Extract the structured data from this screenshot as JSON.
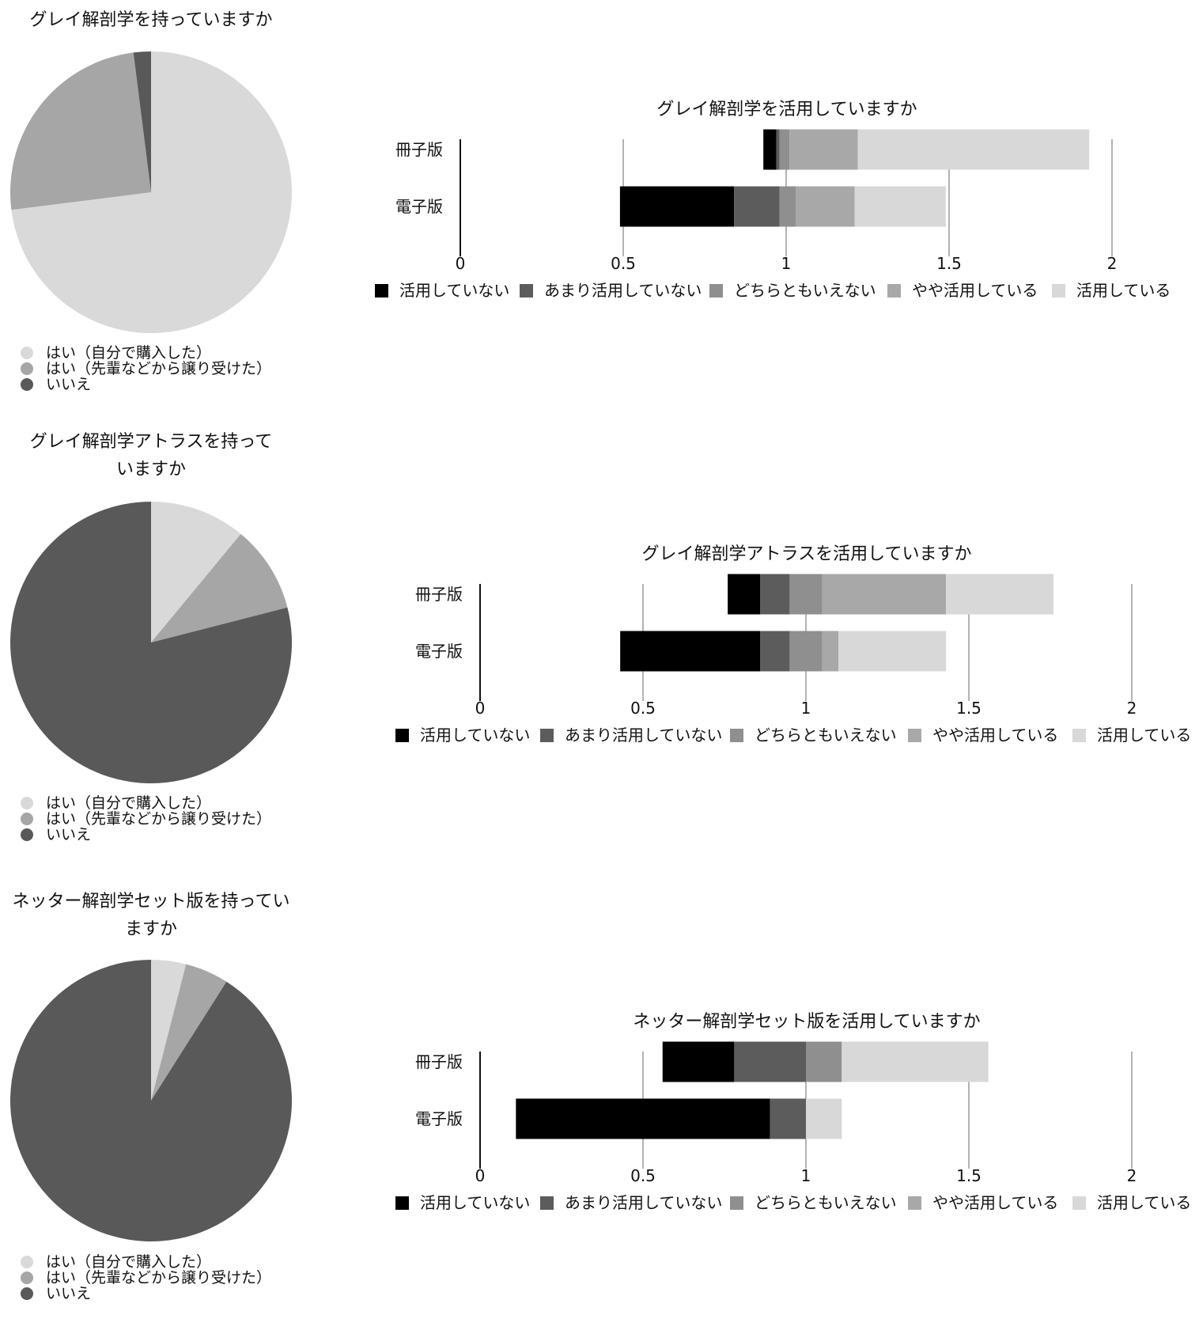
{
  "chart_data": [
    {
      "type": "pie",
      "title": "グレイ解剖学を持っていますか",
      "slices": [
        {
          "label": "はい（自分で購入した）",
          "value": 73,
          "color": "#d9d9d9"
        },
        {
          "label": "はい（先輩などから譲り受けた）",
          "value": 25,
          "color": "#a6a6a6"
        },
        {
          "label": "いいえ",
          "value": 2,
          "color": "#595959"
        }
      ],
      "legend": "bottom-left"
    },
    {
      "type": "bar",
      "orientation": "horizontal",
      "stacked": true,
      "title": "グレイ解剖学を活用していますか",
      "categories": [
        "冊子版",
        "電子版"
      ],
      "start": [
        0.93,
        0.49
      ],
      "series": [
        {
          "name": "活用していない",
          "values": [
            0.04,
            0.35
          ],
          "color": "#000000"
        },
        {
          "name": "あまり活用していない",
          "values": [
            0.01,
            0.14
          ],
          "color": "#5c5c5c"
        },
        {
          "name": "どちらともいえない",
          "values": [
            0.03,
            0.05
          ],
          "color": "#8f8f8f"
        },
        {
          "name": "やや活用している",
          "values": [
            0.21,
            0.18
          ],
          "color": "#a8a8a8"
        },
        {
          "name": "活用している",
          "values": [
            0.71,
            0.28
          ],
          "color": "#d8d8d8"
        }
      ],
      "xlim": [
        0,
        2
      ],
      "xticks": [
        "0",
        "0.5",
        "1",
        "1.5",
        "2"
      ],
      "grid": true,
      "legend": "bottom"
    },
    {
      "type": "pie",
      "title": "グレイ解剖学アトラスを持っていますか",
      "slices": [
        {
          "label": "はい（自分で購入した）",
          "value": 11,
          "color": "#d9d9d9"
        },
        {
          "label": "はい（先輩などから譲り受けた）",
          "value": 10,
          "color": "#a6a6a6"
        },
        {
          "label": "いいえ",
          "value": 79,
          "color": "#595959"
        }
      ],
      "legend": "bottom-left"
    },
    {
      "type": "bar",
      "orientation": "horizontal",
      "stacked": true,
      "title": "グレイ解剖学アトラスを活用していますか",
      "categories": [
        "冊子版",
        "電子版"
      ],
      "start": [
        0.76,
        0.43
      ],
      "series": [
        {
          "name": "活用していない",
          "values": [
            0.1,
            0.43
          ],
          "color": "#000000"
        },
        {
          "name": "あまり活用していない",
          "values": [
            0.09,
            0.09
          ],
          "color": "#5c5c5c"
        },
        {
          "name": "どちらともいえない",
          "values": [
            0.1,
            0.1
          ],
          "color": "#8f8f8f"
        },
        {
          "name": "やや活用している",
          "values": [
            0.38,
            0.05
          ],
          "color": "#a8a8a8"
        },
        {
          "name": "活用している",
          "values": [
            0.33,
            0.33
          ],
          "color": "#d8d8d8"
        }
      ],
      "xlim": [
        0,
        2
      ],
      "xticks": [
        "0",
        "0.5",
        "1",
        "1.5",
        "2"
      ],
      "grid": true,
      "legend": "bottom"
    },
    {
      "type": "pie",
      "title": "ネッター解剖学セット版を持っていますか",
      "slices": [
        {
          "label": "はい（自分で購入した）",
          "value": 4,
          "color": "#d9d9d9"
        },
        {
          "label": "はい（先輩などから譲り受けた）",
          "value": 5,
          "color": "#a6a6a6"
        },
        {
          "label": "いいえ",
          "value": 91,
          "color": "#595959"
        }
      ],
      "legend": "bottom-left"
    },
    {
      "type": "bar",
      "orientation": "horizontal",
      "stacked": true,
      "title": "ネッター解剖学セット版を活用していますか",
      "categories": [
        "冊子版",
        "電子版"
      ],
      "start": [
        0.56,
        0.11
      ],
      "series": [
        {
          "name": "活用していない",
          "values": [
            0.22,
            0.78
          ],
          "color": "#000000"
        },
        {
          "name": "あまり活用していない",
          "values": [
            0.22,
            0.11
          ],
          "color": "#5c5c5c"
        },
        {
          "name": "どちらともいえない",
          "values": [
            0.11,
            0.0
          ],
          "color": "#8f8f8f"
        },
        {
          "name": "やや活用している",
          "values": [
            0.0,
            0.0
          ],
          "color": "#a8a8a8"
        },
        {
          "name": "活用している",
          "values": [
            0.45,
            0.11
          ],
          "color": "#d8d8d8"
        }
      ],
      "xlim": [
        0,
        2
      ],
      "xticks": [
        "0",
        "0.5",
        "1",
        "1.5",
        "2"
      ],
      "grid": true,
      "legend": "bottom"
    }
  ]
}
